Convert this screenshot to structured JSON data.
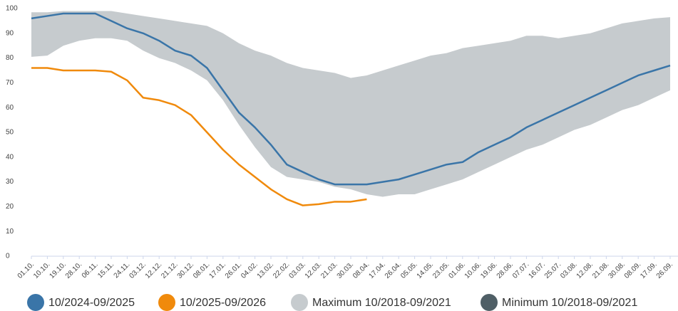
{
  "chart_data": {
    "type": "line",
    "categories": [
      "01.10.",
      "10.10.",
      "19.10.",
      "28.10.",
      "06.11.",
      "15.11.",
      "24.11.",
      "03.12.",
      "12.12.",
      "21.12.",
      "30.12.",
      "08.01.",
      "17.01.",
      "26.01.",
      "04.02.",
      "13.02.",
      "22.02.",
      "03.03.",
      "12.03.",
      "21.03.",
      "30.03.",
      "08.04.",
      "17.04.",
      "26.04.",
      "05.05.",
      "14.05.",
      "23.05.",
      "01.06.",
      "10.06.",
      "19.06.",
      "28.06.",
      "07.07.",
      "16.07.",
      "25.07.",
      "03.08.",
      "12.08.",
      "21.08.",
      "30.08.",
      "08.09.",
      "17.09.",
      "26.09."
    ],
    "series": [
      {
        "name": "10/2024-09/2025",
        "color": "#3a75a8",
        "values": [
          96,
          97,
          98,
          98,
          98,
          95,
          92,
          90,
          87,
          83,
          81,
          76,
          67,
          58,
          52,
          45,
          37,
          34,
          31,
          29,
          29,
          29,
          30,
          31,
          33,
          35,
          37,
          38,
          42,
          45,
          48,
          52,
          55,
          58,
          61,
          64,
          67,
          70,
          73,
          75,
          77
        ]
      },
      {
        "name": "10/2025-09/2026",
        "color": "#f08a0c",
        "values": [
          76,
          76,
          75,
          75,
          75,
          74.5,
          71,
          64,
          63,
          61,
          57,
          50,
          43,
          37,
          32,
          27,
          23,
          20.5,
          21,
          22,
          22,
          23,
          null,
          null,
          null,
          null,
          null,
          null,
          null,
          null,
          null,
          null,
          null,
          null,
          null,
          null,
          null,
          null,
          null,
          null,
          null
        ]
      },
      {
        "name": "Maximum 10/2018-09/2021",
        "color": "#c6cbce",
        "values": [
          98.5,
          98.5,
          99,
          99,
          99,
          99,
          98,
          97,
          96,
          95,
          94,
          93,
          90,
          86,
          83,
          81,
          78,
          76,
          75,
          74,
          72,
          73,
          75,
          77,
          79,
          81,
          82,
          84,
          85,
          86,
          87,
          89,
          89,
          88,
          89,
          90,
          92,
          94,
          95,
          96,
          96.5
        ]
      },
      {
        "name": "Minimum 10/2018-09/2021",
        "color": "#4f5f66",
        "values": [
          80.5,
          81,
          85,
          87,
          88,
          88,
          87,
          83,
          80,
          78,
          75,
          71,
          63,
          53,
          44,
          36,
          32,
          31,
          30,
          28,
          27,
          25,
          24,
          25,
          25,
          27,
          29,
          31,
          34,
          37,
          40,
          43,
          45,
          48,
          51,
          53,
          56,
          59,
          61,
          64,
          67
        ]
      }
    ],
    "ylim": [
      0,
      100
    ],
    "yticks": [
      0,
      10,
      20,
      30,
      40,
      50,
      60,
      70,
      80,
      90,
      100
    ]
  }
}
